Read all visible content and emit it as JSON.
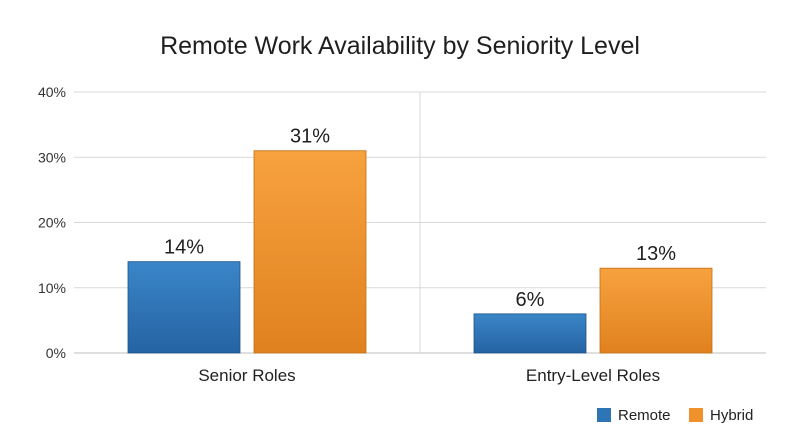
{
  "chart_data": {
    "type": "bar",
    "title": "Remote Work Availability by Seniority Level",
    "xlabel": "",
    "ylabel": "",
    "categories": [
      "Senior Roles",
      "Entry-Level Roles"
    ],
    "series": [
      {
        "name": "Remote",
        "values": [
          14,
          6
        ],
        "labels": [
          "14%",
          "6%"
        ],
        "color": "#2e75b6"
      },
      {
        "name": "Hybrid",
        "values": [
          31,
          13
        ],
        "labels": [
          "31%",
          "13%"
        ],
        "color": "#f0912c"
      }
    ],
    "ylim": [
      0,
      40
    ],
    "yticks": [
      0,
      10,
      20,
      30,
      40
    ],
    "ytick_labels": [
      "0%",
      "10%",
      "20%",
      "30%",
      "40%"
    ],
    "grid": true,
    "category_separator": true,
    "legend_position": "bottom-right"
  }
}
